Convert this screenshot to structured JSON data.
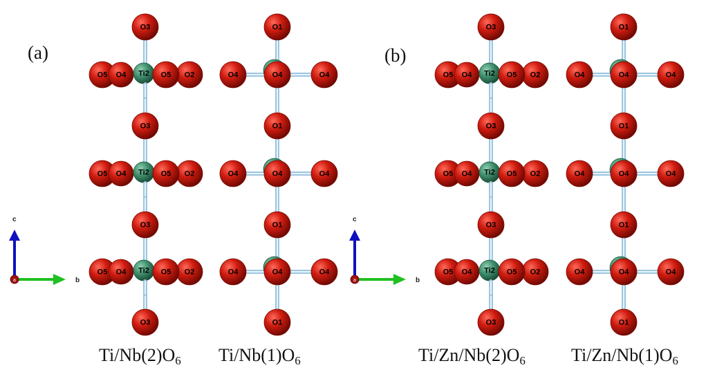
{
  "panels": [
    {
      "label": "(a)",
      "structures": [
        {
          "caption_main": "Ti/Nb(2)O",
          "caption_sub": "6",
          "type": "A",
          "rows": [
            {
              "apex": "O3",
              "center": "Ti2",
              "ring": [
                "O5",
                "O4",
                "O5",
                "O2"
              ]
            },
            {
              "apex": "O3",
              "center": "Ti2",
              "ring": [
                "O5",
                "O4",
                "O5",
                "O2"
              ]
            },
            {
              "apex": "O3",
              "center": "Ti2",
              "ring": [
                "O5",
                "O4",
                "O5",
                "O2"
              ]
            }
          ],
          "bottom": "O3"
        },
        {
          "caption_main": "Ti/Nb(1)O",
          "caption_sub": "6",
          "type": "B",
          "rows": [
            {
              "apex": "O1",
              "ring": [
                "O4",
                "O4",
                "O4"
              ]
            },
            {
              "apex": "O1",
              "ring": [
                "O4",
                "O4",
                "O4"
              ]
            },
            {
              "apex": "O1",
              "ring": [
                "O4",
                "O4",
                "O4"
              ]
            }
          ],
          "bottom": "O1"
        }
      ],
      "axes": {
        "vertical": "c",
        "horizontal": "b",
        "origin": "a"
      }
    },
    {
      "label": "(b)",
      "structures": [
        {
          "caption_main": "Ti/Zn/Nb(2)O",
          "caption_sub": "6",
          "type": "A",
          "rows": [
            {
              "apex": "O3",
              "center": "Ti2",
              "ring": [
                "O5",
                "O4",
                "O5",
                "O2"
              ]
            },
            {
              "apex": "O3",
              "center": "Ti2",
              "ring": [
                "O5",
                "O4",
                "O5",
                "O2"
              ]
            },
            {
              "apex": "O3",
              "center": "Ti2",
              "ring": [
                "O5",
                "O4",
                "O5",
                "O2"
              ]
            }
          ],
          "bottom": "O3"
        },
        {
          "caption_main": "Ti/Zn/Nb(1)O",
          "caption_sub": "6",
          "type": "B",
          "rows": [
            {
              "apex": "O1",
              "ring": [
                "O4",
                "O4",
                "O4"
              ]
            },
            {
              "apex": "O1",
              "ring": [
                "O4",
                "O4",
                "O4"
              ]
            },
            {
              "apex": "O1",
              "ring": [
                "O4",
                "O4",
                "O4"
              ]
            }
          ],
          "bottom": "O1"
        }
      ],
      "axes": {
        "vertical": "c",
        "horizontal": "b",
        "origin": "a"
      }
    }
  ],
  "colors": {
    "oxygen": "#d01c10",
    "oxygen_dark": "#7a0a04",
    "metal": "#3f8f6e",
    "metal_dark": "#1f5a40",
    "bond": "#9dc6e0",
    "axis_c": "#1010c0",
    "axis_b": "#20c020",
    "axis_origin": "#a01010"
  }
}
